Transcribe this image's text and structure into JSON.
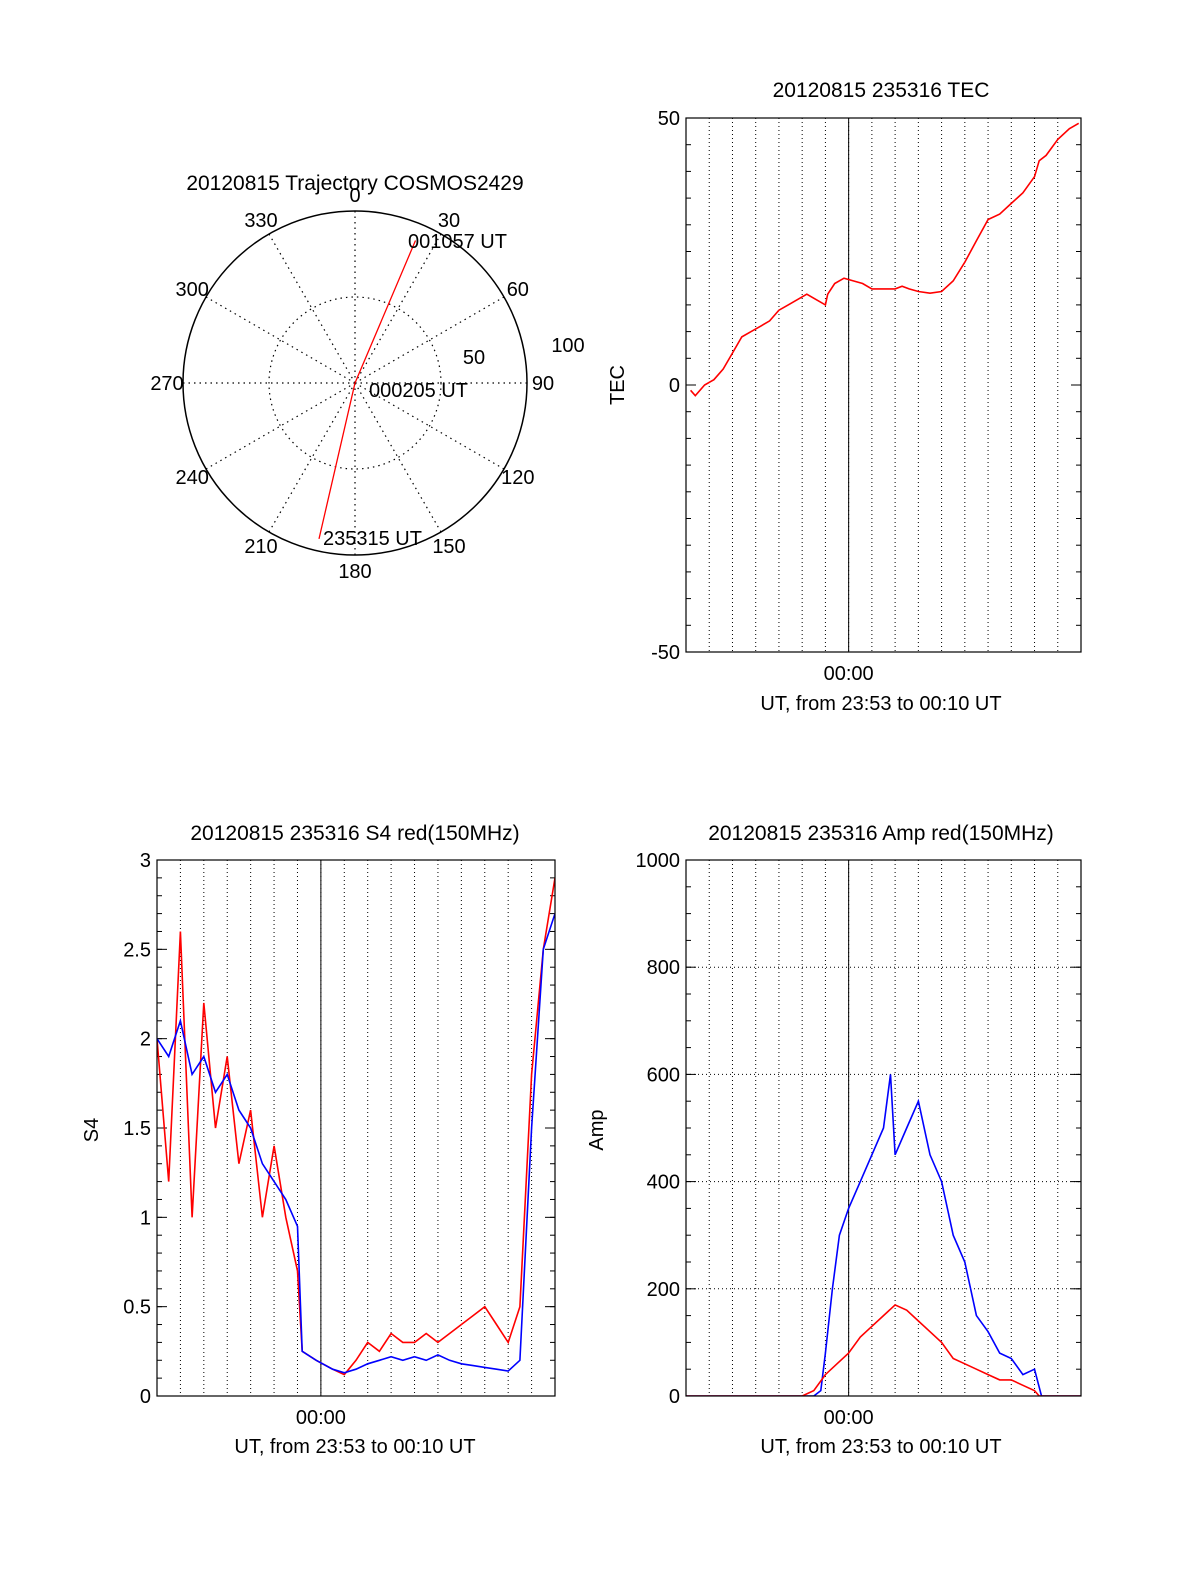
{
  "colors": {
    "red": "#ff0000",
    "blue": "#0000ff",
    "axis": "#000000"
  },
  "chart_data": [
    {
      "id": "trajectory",
      "type": "scatter",
      "subtype": "polar",
      "title": "20120815 Trajectory COSMOS2429",
      "angle_labels": [
        "0",
        "30",
        "60",
        "90",
        "120",
        "150",
        "180",
        "210",
        "240",
        "270",
        "300",
        "330"
      ],
      "ring_labels": [
        "50",
        "100"
      ],
      "ring_values": [
        50,
        100
      ],
      "r_max": 100,
      "grid": true,
      "track": {
        "color": "red",
        "points": [
          {
            "az": 193,
            "r": 93
          },
          {
            "az": 90,
            "r": 0
          },
          {
            "az": 23,
            "r": 90
          }
        ]
      },
      "annotations": [
        "001057 UT",
        "000205 UT",
        "235315 UT"
      ]
    },
    {
      "id": "tec",
      "type": "line",
      "title": "20120815 235316 TEC",
      "xlabel": "UT, from 23:53 to 00:10 UT",
      "ylabel": "TEC",
      "xlim": [
        0,
        17
      ],
      "ylim": [
        -50,
        50
      ],
      "x_ticks": [
        "00:00"
      ],
      "x_tick_values": [
        7
      ],
      "y_ticks": [
        "50",
        "0",
        "-50"
      ],
      "y_tick_values": [
        50,
        0,
        -50
      ],
      "grid": "vertical dotted",
      "series": [
        {
          "color": "red",
          "points": [
            [
              0.2,
              -1
            ],
            [
              0.4,
              -2
            ],
            [
              0.8,
              0
            ],
            [
              1.2,
              1
            ],
            [
              1.6,
              3
            ],
            [
              2.0,
              6
            ],
            [
              2.4,
              9
            ],
            [
              2.8,
              10
            ],
            [
              3.2,
              11
            ],
            [
              3.6,
              12
            ],
            [
              4.0,
              14
            ],
            [
              4.4,
              15
            ],
            [
              4.8,
              16
            ],
            [
              5.2,
              17
            ],
            [
              5.6,
              16
            ],
            [
              6.0,
              15
            ],
            [
              6.1,
              17
            ],
            [
              6.4,
              19
            ],
            [
              6.8,
              20
            ],
            [
              7.2,
              19.5
            ],
            [
              7.6,
              19
            ],
            [
              8.0,
              18
            ],
            [
              8.5,
              18
            ],
            [
              9.0,
              18
            ],
            [
              9.3,
              18.5
            ],
            [
              9.6,
              18
            ],
            [
              10.0,
              17.5
            ],
            [
              10.5,
              17.2
            ],
            [
              11.0,
              17.5
            ],
            [
              11.5,
              19.5
            ],
            [
              12.0,
              23
            ],
            [
              12.5,
              27
            ],
            [
              13.0,
              31
            ],
            [
              13.5,
              32
            ],
            [
              14.0,
              34
            ],
            [
              14.5,
              36
            ],
            [
              15.0,
              39
            ],
            [
              15.2,
              42
            ],
            [
              15.5,
              43
            ],
            [
              16.0,
              46
            ],
            [
              16.5,
              48
            ],
            [
              16.9,
              49
            ]
          ]
        }
      ]
    },
    {
      "id": "s4",
      "type": "line",
      "title": "20120815 235316 S4 red(150MHz)",
      "xlabel": "UT, from 23:53 to 00:10 UT",
      "ylabel": "S4",
      "xlim": [
        0,
        17
      ],
      "ylim": [
        0,
        3
      ],
      "x_ticks": [
        "00:00"
      ],
      "x_tick_values": [
        7
      ],
      "y_ticks": [
        "0",
        "0.5",
        "1",
        "1.5",
        "2",
        "2.5",
        "3"
      ],
      "y_tick_values": [
        0,
        0.5,
        1,
        1.5,
        2,
        2.5,
        3
      ],
      "grid": "vertical dotted",
      "series": [
        {
          "color": "red",
          "points": [
            [
              0,
              2.0
            ],
            [
              0.5,
              1.2
            ],
            [
              1,
              2.6
            ],
            [
              1.5,
              1.0
            ],
            [
              2,
              2.2
            ],
            [
              2.5,
              1.5
            ],
            [
              3,
              1.9
            ],
            [
              3.5,
              1.3
            ],
            [
              4,
              1.6
            ],
            [
              4.5,
              1.0
            ],
            [
              5,
              1.4
            ],
            [
              5.5,
              1.0
            ],
            [
              6,
              0.7
            ],
            [
              6.2,
              0.25
            ],
            [
              6.8,
              0.2
            ],
            [
              7.5,
              0.15
            ],
            [
              8,
              0.12
            ],
            [
              8.5,
              0.2
            ],
            [
              9,
              0.3
            ],
            [
              9.5,
              0.25
            ],
            [
              10,
              0.35
            ],
            [
              10.5,
              0.3
            ],
            [
              11,
              0.3
            ],
            [
              11.5,
              0.35
            ],
            [
              12,
              0.3
            ],
            [
              12.5,
              0.35
            ],
            [
              13,
              0.4
            ],
            [
              13.5,
              0.45
            ],
            [
              14,
              0.5
            ],
            [
              14.5,
              0.4
            ],
            [
              15,
              0.3
            ],
            [
              15.5,
              0.5
            ],
            [
              16,
              1.8
            ],
            [
              16.5,
              2.5
            ],
            [
              17,
              2.9
            ]
          ]
        },
        {
          "color": "blue",
          "points": [
            [
              0,
              2.0
            ],
            [
              0.5,
              1.9
            ],
            [
              1,
              2.1
            ],
            [
              1.5,
              1.8
            ],
            [
              2,
              1.9
            ],
            [
              2.5,
              1.7
            ],
            [
              3,
              1.8
            ],
            [
              3.5,
              1.6
            ],
            [
              4,
              1.5
            ],
            [
              4.5,
              1.3
            ],
            [
              5,
              1.2
            ],
            [
              5.5,
              1.1
            ],
            [
              6,
              0.95
            ],
            [
              6.2,
              0.25
            ],
            [
              6.8,
              0.2
            ],
            [
              7.5,
              0.15
            ],
            [
              8,
              0.13
            ],
            [
              8.5,
              0.15
            ],
            [
              9,
              0.18
            ],
            [
              9.5,
              0.2
            ],
            [
              10,
              0.22
            ],
            [
              10.5,
              0.2
            ],
            [
              11,
              0.22
            ],
            [
              11.5,
              0.2
            ],
            [
              12,
              0.23
            ],
            [
              12.5,
              0.2
            ],
            [
              13,
              0.18
            ],
            [
              13.5,
              0.17
            ],
            [
              14,
              0.16
            ],
            [
              14.5,
              0.15
            ],
            [
              15,
              0.14
            ],
            [
              15.5,
              0.2
            ],
            [
              16,
              1.5
            ],
            [
              16.5,
              2.5
            ],
            [
              17,
              2.7
            ]
          ]
        }
      ]
    },
    {
      "id": "amp",
      "type": "line",
      "title": "20120815 235316 Amp red(150MHz)",
      "xlabel": "UT, from 23:53 to 00:10 UT",
      "ylabel": "Amp",
      "xlim": [
        0,
        17
      ],
      "ylim": [
        0,
        1000
      ],
      "x_ticks": [
        "00:00"
      ],
      "x_tick_values": [
        7
      ],
      "y_ticks": [
        "0",
        "200",
        "400",
        "600",
        "800",
        "1000"
      ],
      "y_tick_values": [
        0,
        200,
        400,
        600,
        800,
        1000
      ],
      "grid": "dotted",
      "series": [
        {
          "color": "blue",
          "points": [
            [
              0,
              0
            ],
            [
              5.5,
              0
            ],
            [
              5.8,
              10
            ],
            [
              6.0,
              80
            ],
            [
              6.3,
              200
            ],
            [
              6.6,
              300
            ],
            [
              7.0,
              350
            ],
            [
              7.5,
              400
            ],
            [
              8.0,
              450
            ],
            [
              8.5,
              500
            ],
            [
              8.8,
              600
            ],
            [
              9.0,
              450
            ],
            [
              9.5,
              500
            ],
            [
              10.0,
              550
            ],
            [
              10.5,
              450
            ],
            [
              11.0,
              400
            ],
            [
              11.5,
              300
            ],
            [
              12.0,
              250
            ],
            [
              12.5,
              150
            ],
            [
              13.0,
              120
            ],
            [
              13.5,
              80
            ],
            [
              14.0,
              70
            ],
            [
              14.5,
              40
            ],
            [
              15.0,
              50
            ],
            [
              15.3,
              0
            ],
            [
              17,
              0
            ]
          ]
        },
        {
          "color": "red",
          "points": [
            [
              0,
              0
            ],
            [
              5.0,
              0
            ],
            [
              5.5,
              10
            ],
            [
              6.0,
              40
            ],
            [
              6.5,
              60
            ],
            [
              7.0,
              80
            ],
            [
              7.5,
              110
            ],
            [
              8.0,
              130
            ],
            [
              8.5,
              150
            ],
            [
              9.0,
              170
            ],
            [
              9.5,
              160
            ],
            [
              10.0,
              140
            ],
            [
              10.5,
              120
            ],
            [
              11.0,
              100
            ],
            [
              11.5,
              70
            ],
            [
              12.0,
              60
            ],
            [
              12.5,
              50
            ],
            [
              13.0,
              40
            ],
            [
              13.5,
              30
            ],
            [
              14.0,
              30
            ],
            [
              14.5,
              20
            ],
            [
              15.0,
              10
            ],
            [
              15.2,
              0
            ],
            [
              17,
              0
            ]
          ]
        }
      ]
    }
  ]
}
